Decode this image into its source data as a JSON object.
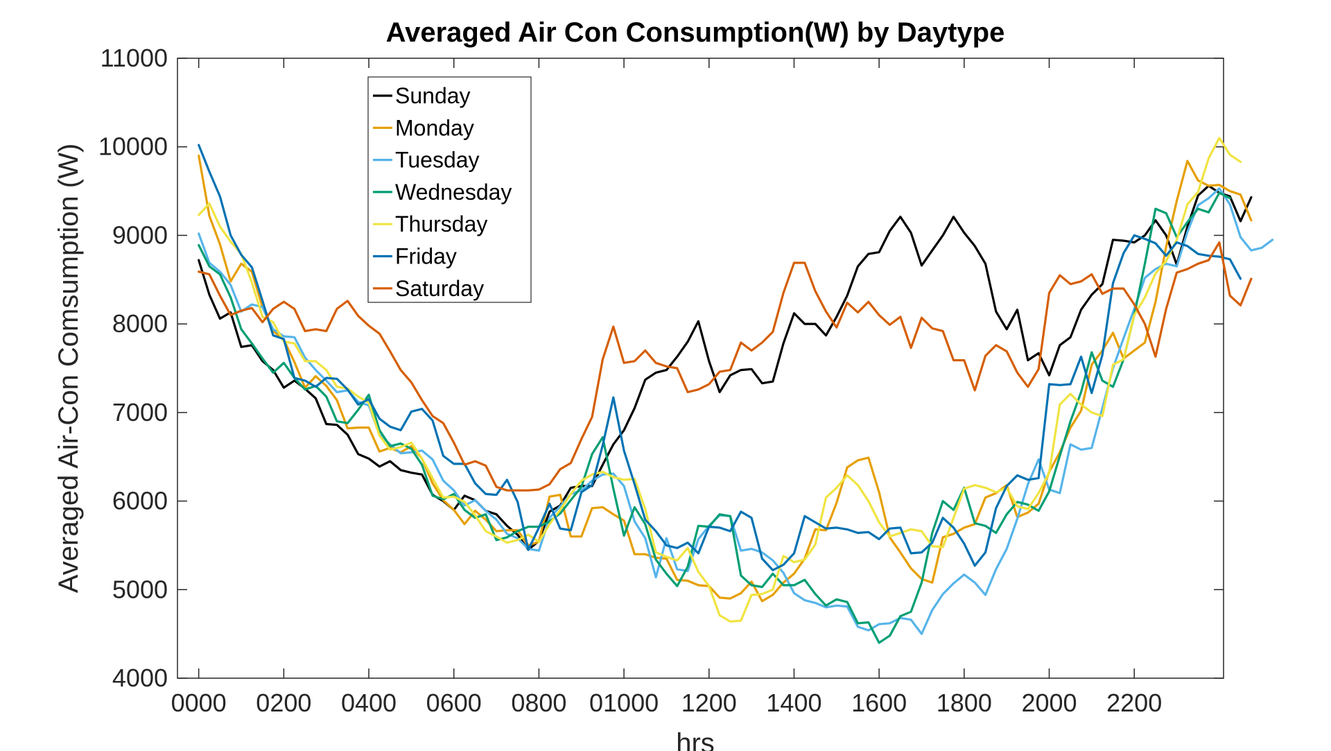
{
  "chart_data": {
    "type": "line",
    "title": "Averaged Air Con Consumption(W) by Daytype",
    "xlabel": "hrs",
    "ylabel": "Averaged Air-Con Comsumption (W)",
    "xlim": [
      -0.5,
      24.1
    ],
    "ylim": [
      4000,
      11000
    ],
    "yticks": [
      4000,
      5000,
      6000,
      7000,
      8000,
      9000,
      10000,
      11000
    ],
    "xticks": [
      0,
      2,
      4,
      6,
      8,
      10,
      12,
      14,
      16,
      18,
      20,
      22
    ],
    "xtick_labels": [
      "0000",
      "0200",
      "0400",
      "0600",
      "0800",
      "01000",
      "1200",
      "1400",
      "1600",
      "1800",
      "2000",
      "2200"
    ],
    "grid": false,
    "legend_position": "top-left",
    "x_step_hours": 0.25,
    "series": [
      {
        "name": "Sunday",
        "color": "#000000",
        "values": [
          8720,
          8330,
          8060,
          8130,
          7740,
          7760,
          7580,
          7480,
          7280,
          7360,
          7270,
          7160,
          6870,
          6860,
          6750,
          6530,
          6480,
          6390,
          6450,
          6350,
          6320,
          6300,
          6070,
          6000,
          5900,
          6060,
          6010,
          5890,
          5850,
          5720,
          5620,
          5450,
          5550,
          5880,
          5950,
          6150,
          6170,
          6170,
          6410,
          6640,
          6800,
          7050,
          7370,
          7450,
          7480,
          7630,
          7800,
          8030,
          7580,
          7230,
          7420,
          7480,
          7490,
          7330,
          7350,
          7780,
          8120,
          8000,
          8000,
          7870,
          8080,
          8320,
          8650,
          8790,
          8810,
          9050,
          9210,
          9030,
          8660,
          8830,
          9000,
          9210,
          9030,
          8880,
          8680,
          8140,
          7940,
          8160,
          7590,
          7670,
          7420,
          7760,
          7850,
          8160,
          8330,
          8450,
          8950,
          8940,
          8920,
          9000,
          9170,
          9000,
          8670,
          9100,
          9450,
          9560,
          9480,
          9440,
          9160,
          9430
        ]
      },
      {
        "name": "Monday",
        "color": "#E69F00",
        "values": [
          9900,
          9220,
          8900,
          8480,
          8680,
          8590,
          8190,
          7920,
          7820,
          7570,
          7280,
          7410,
          7300,
          7140,
          6820,
          6830,
          6830,
          6560,
          6600,
          6550,
          6620,
          6480,
          6200,
          6010,
          5900,
          5740,
          5890,
          5790,
          5660,
          5670,
          5670,
          5500,
          5540,
          6050,
          6070,
          5600,
          5600,
          5920,
          5930,
          5850,
          5780,
          5400,
          5400,
          5360,
          5350,
          5110,
          5100,
          5050,
          5040,
          4910,
          4900,
          4960,
          5090,
          4870,
          4940,
          5080,
          5180,
          5350,
          5680,
          5670,
          5980,
          6380,
          6460,
          6490,
          6100,
          5590,
          5420,
          5240,
          5120,
          5080,
          5590,
          5630,
          5700,
          5740,
          6040,
          6090,
          6180,
          5820,
          5870,
          5970,
          6330,
          6550,
          6830,
          7020,
          7540,
          7700,
          7900,
          7610,
          7700,
          7790,
          8250,
          8870,
          9390,
          9840,
          9620,
          9560,
          9570,
          9500,
          9460,
          9170
        ]
      },
      {
        "name": "Tuesday",
        "color": "#56B4E9",
        "values": [
          9020,
          8690,
          8590,
          8440,
          8140,
          8220,
          8190,
          7940,
          7860,
          7850,
          7620,
          7480,
          7360,
          7230,
          7250,
          7120,
          7080,
          6750,
          6640,
          6540,
          6550,
          6570,
          6470,
          6230,
          6120,
          5950,
          6010,
          5890,
          5790,
          5630,
          5580,
          5460,
          5440,
          5810,
          5940,
          6080,
          6120,
          6230,
          6300,
          6310,
          6170,
          5770,
          5580,
          5140,
          5580,
          5230,
          5210,
          5570,
          5720,
          5840,
          5830,
          5440,
          5460,
          5420,
          5330,
          5190,
          4960,
          4880,
          4850,
          4800,
          4820,
          4810,
          4580,
          4540,
          4610,
          4620,
          4680,
          4660,
          4500,
          4770,
          4950,
          5070,
          5170,
          5080,
          4940,
          5230,
          5460,
          5800,
          6190,
          6470,
          6130,
          6090,
          6640,
          6580,
          6600,
          7050,
          7500,
          7840,
          8170,
          8520,
          8620,
          8680,
          8650,
          9040,
          9340,
          9420,
          9530,
          9350,
          8980,
          8830,
          8860,
          8950
        ]
      },
      {
        "name": "Wednesday",
        "color": "#009E73",
        "values": [
          8890,
          8650,
          8560,
          8300,
          7940,
          7780,
          7610,
          7450,
          7560,
          7390,
          7260,
          7300,
          7180,
          6900,
          6880,
          7030,
          7200,
          6800,
          6620,
          6650,
          6590,
          6410,
          6060,
          6020,
          6080,
          5900,
          5810,
          5850,
          5560,
          5590,
          5660,
          5710,
          5710,
          5770,
          5860,
          6010,
          6160,
          6530,
          6720,
          6140,
          5610,
          5930,
          5740,
          5340,
          5180,
          5040,
          5260,
          5720,
          5710,
          5850,
          5830,
          5160,
          5050,
          5030,
          5180,
          5050,
          5050,
          5110,
          4950,
          4820,
          4890,
          4860,
          4620,
          4630,
          4400,
          4480,
          4700,
          4750,
          5080,
          5640,
          6000,
          5900,
          6150,
          5750,
          5720,
          5640,
          5850,
          5990,
          5960,
          5890,
          6110,
          6510,
          6900,
          7230,
          7680,
          7360,
          7290,
          7600,
          8100,
          8680,
          9300,
          9250,
          8980,
          9150,
          9300,
          9260,
          9480,
          9420
        ]
      },
      {
        "name": "Thursday",
        "color": "#F0E442",
        "values": [
          9230,
          9360,
          9100,
          8930,
          8790,
          8470,
          8080,
          8020,
          7800,
          7780,
          7580,
          7580,
          7480,
          7290,
          7270,
          7180,
          7110,
          6740,
          6580,
          6610,
          6660,
          6480,
          6260,
          6040,
          6050,
          5990,
          5840,
          5660,
          5600,
          5530,
          5560,
          5620,
          5540,
          5740,
          5900,
          6080,
          6230,
          6300,
          6330,
          6270,
          6240,
          6250,
          5910,
          5420,
          5370,
          5330,
          5470,
          5200,
          5040,
          4710,
          4640,
          4650,
          4940,
          4950,
          5000,
          5380,
          5310,
          5340,
          5510,
          6040,
          6150,
          6290,
          6180,
          6000,
          5760,
          5600,
          5640,
          5680,
          5660,
          5490,
          5480,
          5810,
          6140,
          6180,
          6150,
          6100,
          6150,
          5940,
          5910,
          6090,
          6320,
          7090,
          7210,
          7090,
          7000,
          6960,
          7540,
          7600,
          8100,
          8300,
          8570,
          8710,
          8950,
          9350,
          9490,
          9870,
          10100,
          9910,
          9830
        ]
      },
      {
        "name": "Friday",
        "color": "#0072B2",
        "values": [
          10020,
          9720,
          9440,
          9000,
          8780,
          8640,
          8260,
          7870,
          7830,
          7390,
          7360,
          7290,
          7390,
          7380,
          7260,
          7090,
          7150,
          6930,
          6840,
          6800,
          7010,
          7040,
          6910,
          6510,
          6420,
          6420,
          6200,
          6080,
          6070,
          6240,
          5990,
          5450,
          5700,
          5970,
          5690,
          5670,
          6100,
          6180,
          6630,
          7170,
          6570,
          6190,
          5790,
          5660,
          5500,
          5470,
          5530,
          5410,
          5710,
          5700,
          5660,
          5880,
          5810,
          5350,
          5220,
          5280,
          5410,
          5830,
          5760,
          5690,
          5700,
          5680,
          5640,
          5650,
          5570,
          5690,
          5700,
          5410,
          5420,
          5530,
          5810,
          5700,
          5520,
          5270,
          5420,
          5920,
          6170,
          6290,
          6240,
          6260,
          7320,
          7310,
          7320,
          7630,
          7220,
          7650,
          8460,
          8800,
          9000,
          8960,
          8910,
          8770,
          8920,
          8880,
          8790,
          8770,
          8760,
          8730,
          8510
        ]
      },
      {
        "name": "Saturday",
        "color": "#D55E00",
        "values": [
          8590,
          8560,
          8320,
          8100,
          8150,
          8180,
          8020,
          8170,
          8250,
          8170,
          7920,
          7940,
          7920,
          8170,
          8260,
          8090,
          7980,
          7890,
          7690,
          7480,
          7340,
          7140,
          6960,
          6880,
          6660,
          6410,
          6450,
          6400,
          6160,
          6120,
          6120,
          6120,
          6130,
          6190,
          6360,
          6430,
          6700,
          6950,
          7600,
          7970,
          7560,
          7580,
          7700,
          7560,
          7520,
          7500,
          7230,
          7260,
          7320,
          7460,
          7480,
          7790,
          7700,
          7790,
          7910,
          8350,
          8690,
          8690,
          8370,
          8140,
          7960,
          8240,
          8130,
          8250,
          8100,
          7990,
          8080,
          7730,
          8070,
          7950,
          7920,
          7590,
          7590,
          7250,
          7640,
          7760,
          7690,
          7450,
          7290,
          7490,
          8350,
          8550,
          8450,
          8480,
          8560,
          8340,
          8400,
          8400,
          8220,
          8000,
          7630,
          8170,
          8580,
          8620,
          8680,
          8720,
          8920,
          8320,
          8210,
          8510
        ]
      }
    ]
  }
}
